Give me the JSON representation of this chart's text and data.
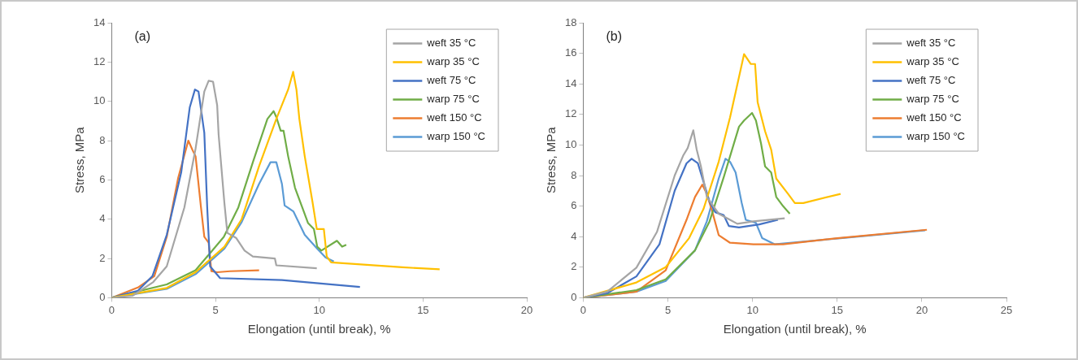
{
  "chart_data": [
    {
      "type": "line",
      "xlabel": "Elongation (until break), %",
      "ylabel": "Stress, MPa",
      "annotations": [
        "(a)"
      ],
      "xlim": [
        0,
        20
      ],
      "xticks": [
        0,
        5,
        10,
        15,
        20
      ],
      "ylim": [
        0,
        14
      ],
      "yticks": [
        0,
        2,
        4,
        6,
        8,
        10,
        12,
        14
      ],
      "grid": false,
      "legend": "top right",
      "marker": "none",
      "line_style": "solid",
      "series": [
        {
          "name": "weft 35 °C",
          "color": "#a5a5a5",
          "x": [
            0,
            1,
            2,
            2.65,
            3.5,
            4.04,
            4.46,
            4.67,
            4.88,
            5.08,
            5.15,
            5.43,
            5.57,
            5.99,
            6.4,
            6.8,
            7.86,
            7.93,
            9.88
          ],
          "values": [
            0,
            0.1,
            0.8,
            1.6,
            4.6,
            7.6,
            10.5,
            11.05,
            11,
            9.8,
            8.3,
            4.8,
            3.3,
            3.05,
            2.4,
            2.1,
            2,
            1.65,
            1.5
          ]
        },
        {
          "name": "warp 35 °C",
          "color": "#ffc000",
          "x": [
            0,
            2.65,
            4.04,
            5.43,
            6.26,
            7.1,
            7.93,
            8.5,
            8.74,
            8.9,
            9.04,
            9.3,
            9.67,
            9.88,
            10.22,
            10.36,
            10.57,
            12,
            14,
            15.8
          ],
          "values": [
            0,
            0.5,
            1.3,
            2.6,
            4,
            6.7,
            9.1,
            10.6,
            11.5,
            10.6,
            9.1,
            7.2,
            4.9,
            3.5,
            3.5,
            2.1,
            1.8,
            1.7,
            1.55,
            1.45
          ]
        },
        {
          "name": "weft 75 °C",
          "color": "#4472c4",
          "x": [
            0,
            1.26,
            1.96,
            2.65,
            3.35,
            3.76,
            4.01,
            4.18,
            4.46,
            4.6,
            4.74,
            5.22,
            8.2,
            11.96
          ],
          "values": [
            0,
            0.36,
            1.1,
            3.2,
            6.4,
            9.7,
            10.6,
            10.5,
            8.4,
            4.6,
            1.6,
            1,
            0.9,
            0.55
          ]
        },
        {
          "name": "warp 75 °C",
          "color": "#70ad47",
          "x": [
            0,
            2.65,
            4.04,
            5.4,
            6.1,
            6.8,
            7.5,
            7.8,
            7.93,
            8.14,
            8.28,
            8.5,
            8.83,
            9.04,
            9.46,
            9.74,
            9.9,
            10.1,
            10.85,
            11.1,
            11.3
          ],
          "values": [
            0,
            0.68,
            1.4,
            3.1,
            4.6,
            6.9,
            9.1,
            9.5,
            9.2,
            8.5,
            8.5,
            7.2,
            5.6,
            5,
            3.8,
            3.5,
            2.6,
            2.4,
            2.9,
            2.6,
            2.7
          ]
        },
        {
          "name": "weft 150 °C",
          "color": "#ed7d31",
          "x": [
            0,
            1.26,
            2.05,
            2.65,
            3.2,
            3.69,
            3.9,
            4.04,
            4.3,
            4.46,
            4.67,
            4.8,
            5.08,
            5.7,
            7.1
          ],
          "values": [
            0,
            0.52,
            1.1,
            3.1,
            6.1,
            8,
            7.5,
            7.2,
            4.6,
            3.1,
            2.8,
            1.35,
            1.3,
            1.35,
            1.4
          ]
        },
        {
          "name": "warp 150 °C",
          "color": "#5b9bd5",
          "x": [
            0,
            2.65,
            4.04,
            5.43,
            6.26,
            7.1,
            7.65,
            7.93,
            8.2,
            8.33,
            8.75,
            9.3,
            9.9,
            10.3,
            10.7
          ],
          "values": [
            0,
            0.45,
            1.2,
            2.5,
            3.85,
            5.8,
            6.9,
            6.9,
            5.8,
            4.7,
            4.4,
            3.2,
            2.5,
            2.05,
            1.85
          ]
        }
      ]
    },
    {
      "type": "line",
      "xlabel": "Elongation (until break), %",
      "ylabel": "Stress, MPa",
      "annotations": [
        "(b)"
      ],
      "xlim": [
        0,
        25
      ],
      "xticks": [
        0,
        5,
        10,
        15,
        20,
        25
      ],
      "ylim": [
        0,
        18
      ],
      "yticks": [
        0,
        2,
        4,
        6,
        8,
        10,
        12,
        14,
        16,
        18
      ],
      "grid": false,
      "legend": "top right",
      "marker": "none",
      "line_style": "solid",
      "series": [
        {
          "name": "weft 35 °C",
          "color": "#a5a5a5",
          "x": [
            0,
            1.42,
            3.14,
            4.35,
            5.4,
            5.9,
            6.17,
            6.5,
            6.7,
            6.95,
            7.3,
            8,
            8.67,
            9.1,
            10.05,
            11.9
          ],
          "values": [
            0,
            0.4,
            1.97,
            4.3,
            8,
            9.3,
            9.8,
            10.96,
            9.7,
            8.6,
            6.6,
            5.5,
            5.1,
            4.84,
            5,
            5.2
          ]
        },
        {
          "name": "warp 35 °C",
          "color": "#ffc000",
          "x": [
            0,
            3.14,
            4.87,
            6.25,
            7.1,
            8,
            8.67,
            9.5,
            9.9,
            10.15,
            10.3,
            10.74,
            11.1,
            11.4,
            12.1,
            12.5,
            13,
            15.2
          ],
          "values": [
            0,
            1,
            2,
            3.9,
            5.8,
            8.9,
            11.8,
            15.95,
            15.3,
            15.3,
            12.8,
            10.9,
            9.7,
            7.8,
            6.8,
            6.2,
            6.2,
            6.8
          ]
        },
        {
          "name": "weft 75 °C",
          "color": "#4472c4",
          "x": [
            0,
            1.42,
            3.14,
            4.5,
            5.4,
            6.1,
            6.4,
            6.77,
            7.1,
            7.46,
            7.8,
            8.3,
            8.6,
            9.2,
            10.4,
            11.5
          ],
          "values": [
            0,
            0.3,
            1.4,
            3.5,
            7,
            8.8,
            9.1,
            8.8,
            7.6,
            6.3,
            5.6,
            5.4,
            4.7,
            4.6,
            4.8,
            5.1
          ]
        },
        {
          "name": "warp 75 °C",
          "color": "#70ad47",
          "x": [
            0,
            3.14,
            4.87,
            6.6,
            7.46,
            8.3,
            9.2,
            9.5,
            9.97,
            10.2,
            10.5,
            10.74,
            11.1,
            11.4,
            11.8,
            12.2
          ],
          "values": [
            0,
            0.5,
            1.2,
            3.1,
            5,
            7.9,
            11.2,
            11.6,
            12.1,
            11.6,
            10.1,
            8.6,
            8.2,
            6.6,
            6,
            5.5
          ]
        },
        {
          "name": "weft 150 °C",
          "color": "#ed7d31",
          "x": [
            0,
            3.14,
            4.87,
            6.1,
            6.6,
            7.03,
            7.3,
            7.63,
            8,
            8.67,
            10.05,
            11.8,
            15,
            20.3
          ],
          "values": [
            0,
            0.4,
            1.8,
            5.1,
            6.6,
            7.4,
            6.8,
            5.6,
            4.1,
            3.6,
            3.5,
            3.5,
            3.9,
            4.45
          ]
        },
        {
          "name": "warp 150 °C",
          "color": "#5b9bd5",
          "x": [
            0,
            3.14,
            4.87,
            6.6,
            7.3,
            8,
            8.4,
            8.67,
            9,
            9.36,
            9.6,
            10.2,
            10.57,
            11.3,
            15.2,
            20.2
          ],
          "values": [
            0,
            0.4,
            1.1,
            3.1,
            5,
            7.8,
            9.1,
            8.9,
            8.2,
            6.2,
            5.1,
            4.9,
            3.9,
            3.5,
            3.9,
            4.42
          ]
        }
      ]
    }
  ]
}
